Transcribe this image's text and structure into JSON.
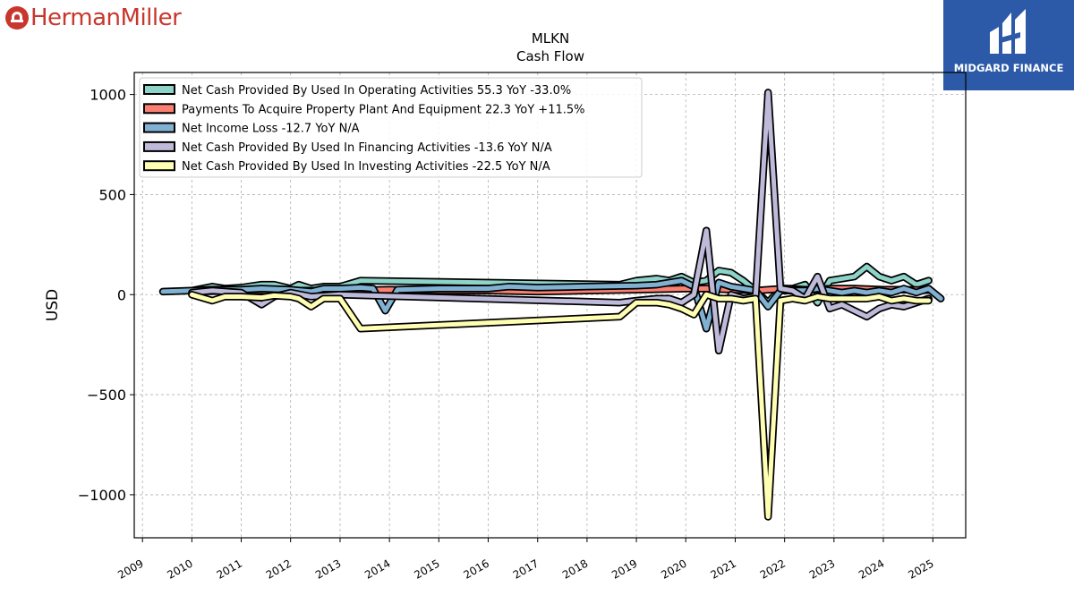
{
  "brand": {
    "left_logo": "HermanMiller",
    "right_logo": "MIDGARD FINANCE"
  },
  "colors": {
    "operating": "#8dd3c7",
    "capex": "#fb8072",
    "net_income": "#80b1d3",
    "financing": "#bebada",
    "investing": "#ffffb3",
    "brand_red": "#c8372d",
    "brand_blue": "#2c5aa8"
  },
  "chart_data": {
    "type": "line",
    "title": "MLKN",
    "subtitle": "Cash Flow",
    "xlabel": "",
    "ylabel": "USD",
    "xlim": [
      "2008-11",
      "2025-09"
    ],
    "ylim": [
      -1215,
      1110
    ],
    "yticks": [
      1000,
      500,
      0,
      -500,
      -1000
    ],
    "ytick_labels": [
      "1000",
      "500",
      "0",
      "−500",
      "−1000"
    ],
    "xticks": [
      "2009-01-01",
      "2010-01-01",
      "2011-01-01",
      "2012-01-01",
      "2013-01-01",
      "2014-01-01",
      "2015-01-01",
      "2016-01-01",
      "2017-01-01",
      "2018-01-01",
      "2019-01-01",
      "2020-01-01",
      "2021-01-01",
      "2022-01-01",
      "2023-01-01",
      "2024-01-01",
      "2025-01-01"
    ],
    "xtick_labels": [
      "2009",
      "2010",
      "2011",
      "2012",
      "2013",
      "2014",
      "2015",
      "2016",
      "2017",
      "2018",
      "2019",
      "2020",
      "2021",
      "2022",
      "2023",
      "2024",
      "2025"
    ],
    "grid": true,
    "legend_position": "top-left",
    "series": [
      {
        "name": "Net Cash Provided By Used In Operating Activities",
        "legend": "Net Cash Provided By Used In Operating Activities  55.3 YoY -33.0%",
        "color_key": "operating",
        "points": [
          [
            "2010-01-01",
            20
          ],
          [
            "2010-06-01",
            40
          ],
          [
            "2010-09-01",
            30
          ],
          [
            "2011-01-01",
            35
          ],
          [
            "2011-06-01",
            50
          ],
          [
            "2011-09-01",
            50
          ],
          [
            "2012-01-01",
            30
          ],
          [
            "2012-03-01",
            50
          ],
          [
            "2012-06-01",
            30
          ],
          [
            "2012-09-01",
            40
          ],
          [
            "2013-01-01",
            40
          ],
          [
            "2013-06-01",
            70
          ],
          [
            "2018-09-01",
            50
          ],
          [
            "2019-01-01",
            70
          ],
          [
            "2019-06-01",
            80
          ],
          [
            "2019-09-01",
            70
          ],
          [
            "2019-12-01",
            90
          ],
          [
            "2020-03-01",
            60
          ],
          [
            "2020-06-01",
            70
          ],
          [
            "2020-09-01",
            120
          ],
          [
            "2020-12-01",
            110
          ],
          [
            "2021-03-01",
            70
          ],
          [
            "2021-06-01",
            20
          ],
          [
            "2021-09-01",
            -40
          ],
          [
            "2021-12-01",
            30
          ],
          [
            "2022-03-01",
            30
          ],
          [
            "2022-06-01",
            50
          ],
          [
            "2022-09-01",
            -40
          ],
          [
            "2022-12-01",
            70
          ],
          [
            "2023-03-01",
            80
          ],
          [
            "2023-06-01",
            90
          ],
          [
            "2023-09-01",
            140
          ],
          [
            "2023-12-01",
            90
          ],
          [
            "2024-03-01",
            70
          ],
          [
            "2024-06-01",
            90
          ],
          [
            "2024-09-01",
            50
          ],
          [
            "2024-12-01",
            70
          ]
        ]
      },
      {
        "name": "Payments To Acquire Property Plant And Equipment",
        "legend": "Payments To Acquire Property Plant And Equipment  22.3 YoY +11.5%",
        "color_key": "capex",
        "points": [
          [
            "2010-01-01",
            15
          ],
          [
            "2011-01-01",
            20
          ],
          [
            "2012-01-01",
            20
          ],
          [
            "2013-01-01",
            20
          ],
          [
            "2014-01-01",
            25
          ],
          [
            "2015-01-01",
            20
          ],
          [
            "2016-01-01",
            20
          ],
          [
            "2017-01-01",
            15
          ],
          [
            "2018-01-01",
            20
          ],
          [
            "2019-01-01",
            25
          ],
          [
            "2020-01-01",
            30
          ],
          [
            "2020-06-01",
            30
          ],
          [
            "2021-01-01",
            25
          ],
          [
            "2021-06-01",
            20
          ],
          [
            "2022-01-01",
            30
          ],
          [
            "2022-06-01",
            25
          ],
          [
            "2023-01-01",
            30
          ],
          [
            "2023-06-01",
            30
          ],
          [
            "2024-01-01",
            25
          ],
          [
            "2024-06-01",
            25
          ],
          [
            "2024-12-01",
            22
          ]
        ]
      },
      {
        "name": "Net Income Loss",
        "legend": "Net Income Loss  -12.7 YoY N/A",
        "color_key": "net_income",
        "points": [
          [
            "2009-06-01",
            15
          ],
          [
            "2010-01-01",
            20
          ],
          [
            "2010-06-01",
            25
          ],
          [
            "2011-01-01",
            25
          ],
          [
            "2011-06-01",
            30
          ],
          [
            "2012-01-01",
            25
          ],
          [
            "2012-06-01",
            15
          ],
          [
            "2012-09-01",
            30
          ],
          [
            "2013-01-01",
            30
          ],
          [
            "2013-06-01",
            35
          ],
          [
            "2013-09-01",
            30
          ],
          [
            "2013-12-01",
            -80
          ],
          [
            "2014-03-01",
            25
          ],
          [
            "2015-01-01",
            30
          ],
          [
            "2016-01-01",
            30
          ],
          [
            "2016-06-01",
            40
          ],
          [
            "2017-01-01",
            35
          ],
          [
            "2018-01-01",
            40
          ],
          [
            "2019-01-01",
            45
          ],
          [
            "2019-06-01",
            50
          ],
          [
            "2019-12-01",
            70
          ],
          [
            "2020-03-01",
            40
          ],
          [
            "2020-06-01",
            -170
          ],
          [
            "2020-09-01",
            60
          ],
          [
            "2020-12-01",
            40
          ],
          [
            "2021-03-01",
            30
          ],
          [
            "2021-06-01",
            20
          ],
          [
            "2021-09-01",
            -60
          ],
          [
            "2021-12-01",
            20
          ],
          [
            "2022-03-01",
            20
          ],
          [
            "2022-06-01",
            20
          ],
          [
            "2022-09-01",
            30
          ],
          [
            "2022-12-01",
            20
          ],
          [
            "2023-03-01",
            10
          ],
          [
            "2023-06-01",
            20
          ],
          [
            "2023-09-01",
            10
          ],
          [
            "2023-12-01",
            20
          ],
          [
            "2024-03-01",
            10
          ],
          [
            "2024-06-01",
            30
          ],
          [
            "2024-09-01",
            10
          ],
          [
            "2024-12-01",
            30
          ],
          [
            "2025-03-01",
            -20
          ]
        ]
      },
      {
        "name": "Net Cash Provided By Used In Financing Activities",
        "legend": "Net Cash Provided By Used In Financing Activities  -13.6 YoY N/A",
        "color_key": "financing",
        "points": [
          [
            "2010-01-01",
            10
          ],
          [
            "2010-06-01",
            20
          ],
          [
            "2011-01-01",
            10
          ],
          [
            "2011-06-01",
            -50
          ],
          [
            "2011-09-01",
            -10
          ],
          [
            "2012-01-01",
            10
          ],
          [
            "2012-06-01",
            -10
          ],
          [
            "2013-01-01",
            0
          ],
          [
            "2018-09-01",
            -40
          ],
          [
            "2019-01-01",
            -30
          ],
          [
            "2019-06-01",
            -20
          ],
          [
            "2019-09-01",
            -20
          ],
          [
            "2019-12-01",
            -40
          ],
          [
            "2020-03-01",
            0
          ],
          [
            "2020-06-01",
            320
          ],
          [
            "2020-09-01",
            -280
          ],
          [
            "2020-12-01",
            0
          ],
          [
            "2021-03-01",
            -20
          ],
          [
            "2021-06-01",
            -10
          ],
          [
            "2021-09-01",
            1010
          ],
          [
            "2021-12-01",
            30
          ],
          [
            "2022-03-01",
            20
          ],
          [
            "2022-06-01",
            -20
          ],
          [
            "2022-09-01",
            90
          ],
          [
            "2022-12-01",
            -70
          ],
          [
            "2023-03-01",
            -50
          ],
          [
            "2023-06-01",
            -80
          ],
          [
            "2023-09-01",
            -110
          ],
          [
            "2023-12-01",
            -70
          ],
          [
            "2024-03-01",
            -50
          ],
          [
            "2024-06-01",
            -60
          ],
          [
            "2024-09-01",
            -40
          ],
          [
            "2024-12-01",
            -20
          ]
        ]
      },
      {
        "name": "Net Cash Provided By Used In Investing Activities",
        "legend": "Net Cash Provided By Used In Investing Activities  -22.5 YoY N/A",
        "color_key": "investing",
        "points": [
          [
            "2010-01-01",
            0
          ],
          [
            "2010-06-01",
            -30
          ],
          [
            "2010-09-01",
            -10
          ],
          [
            "2011-01-01",
            -10
          ],
          [
            "2011-06-01",
            -15
          ],
          [
            "2011-09-01",
            -5
          ],
          [
            "2012-01-01",
            -10
          ],
          [
            "2012-03-01",
            -20
          ],
          [
            "2012-06-01",
            -60
          ],
          [
            "2012-09-01",
            -20
          ],
          [
            "2013-01-01",
            -20
          ],
          [
            "2013-06-01",
            -170
          ],
          [
            "2018-09-01",
            -110
          ],
          [
            "2019-01-01",
            -40
          ],
          [
            "2019-06-01",
            -40
          ],
          [
            "2019-09-01",
            -50
          ],
          [
            "2019-12-01",
            -70
          ],
          [
            "2020-03-01",
            -100
          ],
          [
            "2020-06-01",
            0
          ],
          [
            "2020-09-01",
            -20
          ],
          [
            "2020-12-01",
            -20
          ],
          [
            "2021-03-01",
            -30
          ],
          [
            "2021-06-01",
            -20
          ],
          [
            "2021-09-01",
            -1110
          ],
          [
            "2021-12-01",
            -30
          ],
          [
            "2022-03-01",
            -20
          ],
          [
            "2022-06-01",
            -30
          ],
          [
            "2022-09-01",
            -10
          ],
          [
            "2022-12-01",
            -20
          ],
          [
            "2023-03-01",
            -20
          ],
          [
            "2023-06-01",
            -20
          ],
          [
            "2023-09-01",
            -20
          ],
          [
            "2023-12-01",
            -10
          ],
          [
            "2024-03-01",
            -30
          ],
          [
            "2024-06-01",
            -20
          ],
          [
            "2024-09-01",
            -30
          ],
          [
            "2024-12-01",
            -30
          ]
        ]
      }
    ]
  }
}
